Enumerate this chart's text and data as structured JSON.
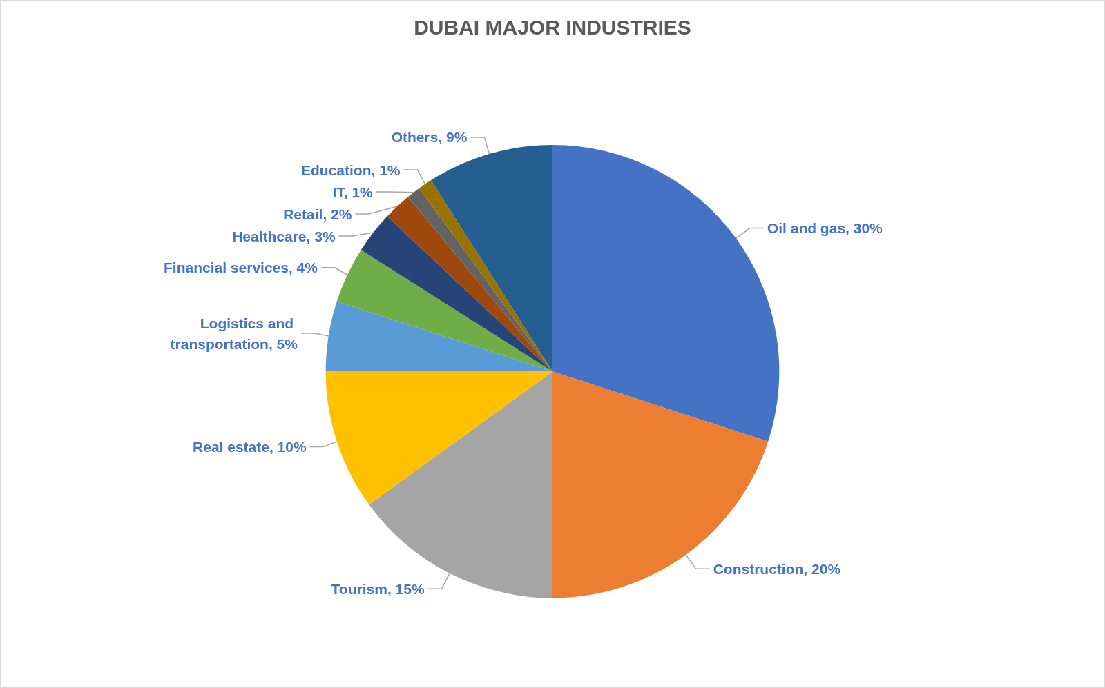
{
  "chart_data": {
    "type": "pie",
    "title": "DUBAI MAJOR INDUSTRIES",
    "categories": [
      "Oil and gas",
      "Construction",
      "Tourism",
      "Real estate",
      "Logistics and transportation",
      "Financial services",
      "Healthcare",
      "Retail",
      "IT",
      "Education",
      "Others"
    ],
    "values": [
      30,
      20,
      15,
      10,
      5,
      4,
      3,
      2,
      1,
      1,
      9
    ],
    "value_labels": [
      "30%",
      "20%",
      "15%",
      "10%",
      "5%",
      "4%",
      "3%",
      "2%",
      "1%",
      "1%",
      "9%"
    ],
    "colors": [
      "#4472c4",
      "#ed7d31",
      "#a5a5a5",
      "#ffc000",
      "#5b9bd5",
      "#70ad47",
      "#264478",
      "#9e480e",
      "#636363",
      "#997300",
      "#255e91"
    ],
    "legend": false
  }
}
